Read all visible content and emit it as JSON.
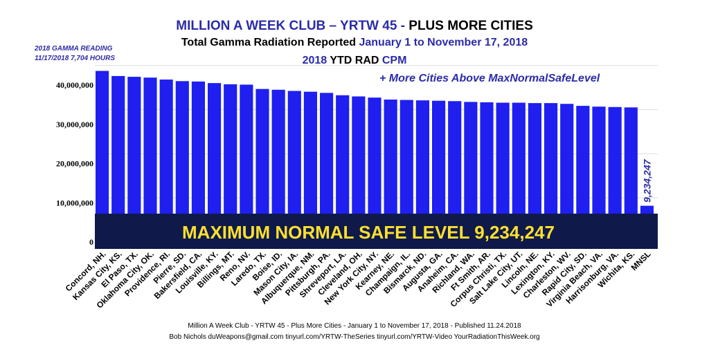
{
  "header": {
    "title_part1": "MILLION A WEEK CLUB – YRTW 45 -",
    "title_part2": "PLUS MORE CITIES",
    "subtitle_part1": "Total Gamma Radiation Reported",
    "subtitle_part2": "January 1 to November 17, 2018",
    "line3_part1": "2018",
    "line3_part2": "YTD RAD",
    "line3_part3": "CPM",
    "more_cities": "+ More Cities Above MaxNormalSafeLevel"
  },
  "gamma_reading": {
    "line1": "2018 GAMMA READING",
    "line2": "11/17/2018  7,704 HOURS"
  },
  "colors": {
    "bar": "#1f1ff0",
    "band": "#0f1a4a",
    "band_text": "#ffe02e",
    "title_blue": "#2b2ba8"
  },
  "chart_data": {
    "type": "bar",
    "categories": [
      "Concord, NH.",
      "Kansas City, KS.",
      "El Paso, TX.",
      "Oklahoma City, OK.",
      "Providence, RI.",
      "Pierre, SD.",
      "Bakersfield, CA.",
      "Louisville, KY.",
      "Billings, MT.",
      "Reno, NV.",
      "Laredo, TX.",
      "Boise, ID.",
      "Mason City, IA.",
      "Albuquerque, NM.",
      "Pittsburgh, PA.",
      "Shreveport, LA.",
      "Cleveland, OH.",
      "New York City, NY.",
      "Kearney, NE.",
      "Champaign, IL.",
      "Bismarck, ND.",
      "Augusta, GA.",
      "Anaheim, CA.",
      "Richland, WA.",
      "Ft Smith, AR.",
      "Corpus Christi, TX.",
      "Salt Lake City, UT.",
      "Lincoln, NE.",
      "Lexington, KY.",
      "Charleston, WV.",
      "Rapid City, SD.",
      "Virginia Beach, VA.",
      "Harrisonburg, VA.",
      "Wichita, KS.",
      "MNSL"
    ],
    "values": [
      43600000,
      42300000,
      42100000,
      41900000,
      41400000,
      41000000,
      40900000,
      40500000,
      40200000,
      40100000,
      39000000,
      38800000,
      38500000,
      38300000,
      38000000,
      37400000,
      37100000,
      36800000,
      36300000,
      36200000,
      36100000,
      36000000,
      35900000,
      35700000,
      35600000,
      35500000,
      35500000,
      35400000,
      35400000,
      35200000,
      34700000,
      34500000,
      34400000,
      34300000,
      9234247
    ],
    "ylim": [
      0,
      45000000
    ],
    "yticks": [
      "0",
      "10,000,000",
      "20,000,000",
      "30,000,000",
      "40,000,000"
    ],
    "ytick_values": [
      0,
      10000000,
      20000000,
      30000000,
      40000000
    ],
    "mnsl_label": "9,234,247",
    "band_label": "MAXIMUM NORMAL SAFE LEVEL 9,234,247",
    "grid": true
  },
  "footer": {
    "line1": "Million A Week Club - YRTW 45 - Plus More Cities - January 1 to November 17, 2018  -  Published 11.24.2018",
    "line2": "Bob Nichols  duWeapons@gmail.com tinyurl.com/YRTW-TheSeries  tinyurl.com/YRTW-Video  YourRadiationThisWeek.org"
  }
}
